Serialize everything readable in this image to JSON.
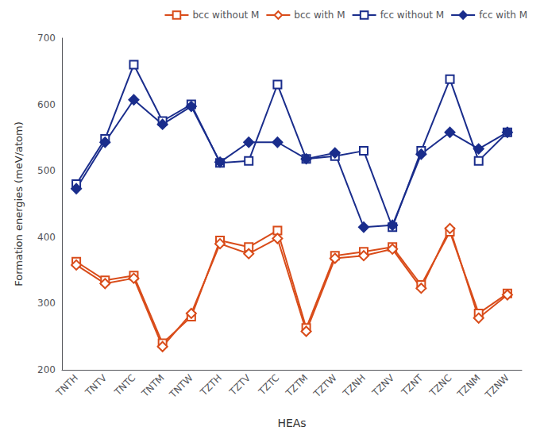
{
  "chart_data": {
    "type": "line",
    "xlabel": "HEAs",
    "ylabel": "Formation energies (meV/atom)",
    "categories": [
      "TNTH",
      "TNTV",
      "TNTC",
      "TNTM",
      "TNTW",
      "TZTH",
      "TZTV",
      "TZTC",
      "TZTM",
      "TZTW",
      "TZNH",
      "TZNV",
      "TZNT",
      "TZNC",
      "TZNM",
      "TZNW"
    ],
    "series": [
      {
        "name": "bcc without M",
        "color": "#d94c1a",
        "marker": "open square",
        "values": [
          363,
          335,
          342,
          240,
          280,
          395,
          385,
          410,
          263,
          372,
          378,
          385,
          328,
          408,
          285,
          315
        ]
      },
      {
        "name": "bcc with M",
        "color": "#d94c1a",
        "marker": "open diamond",
        "values": [
          358,
          330,
          338,
          235,
          285,
          390,
          375,
          398,
          258,
          368,
          372,
          382,
          323,
          413,
          278,
          313
        ]
      },
      {
        "name": "fcc without M",
        "color": "#1a2d8c",
        "marker": "open square",
        "values": [
          480,
          548,
          660,
          575,
          600,
          512,
          515,
          630,
          518,
          522,
          530,
          415,
          530,
          638,
          515,
          558
        ]
      },
      {
        "name": "fcc with M",
        "color": "#1a2d8c",
        "marker": "filled diamond",
        "values": [
          473,
          543,
          607,
          570,
          597,
          513,
          543,
          543,
          518,
          527,
          415,
          418,
          525,
          558,
          533,
          558
        ]
      }
    ],
    "ylim": [
      200,
      700
    ],
    "yticks": [
      200,
      300,
      400,
      500,
      600,
      700
    ],
    "grid": false,
    "legend": "upper right"
  }
}
